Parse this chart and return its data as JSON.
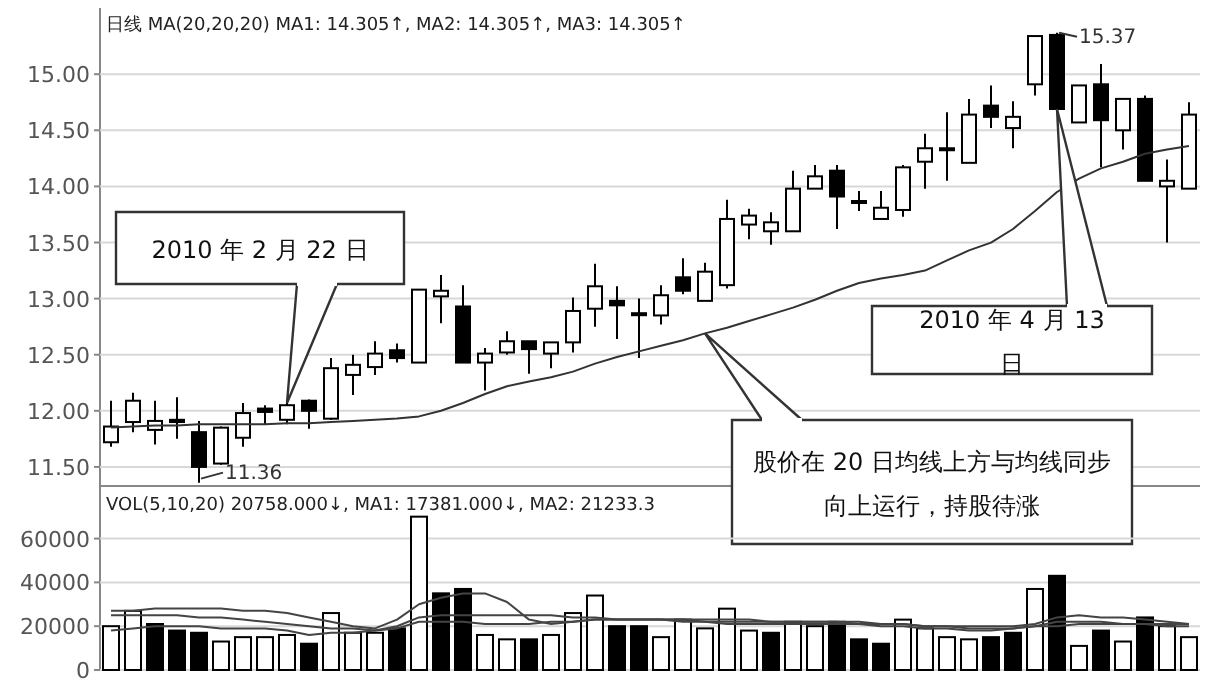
{
  "chart_data": [
    {
      "type": "candlestick",
      "title": "日线 MA(20,20,20) MA1: 14.305↑, MA2: 14.305↑, MA3: 14.305↑",
      "color": "#000000",
      "grid": "y",
      "categories": [
        null,
        null,
        null,
        null,
        null,
        null,
        null,
        null,
        null,
        null,
        null,
        null,
        null,
        null,
        null,
        null,
        null,
        null,
        null,
        null,
        null,
        null,
        null,
        null,
        null,
        null,
        null,
        null,
        null,
        null,
        null,
        null,
        null,
        null,
        null,
        null,
        null,
        null,
        null,
        null,
        null,
        null,
        null,
        null,
        null,
        null,
        null,
        null,
        null,
        null
      ],
      "ohlc": [
        [
          11.72,
          12.09,
          11.68,
          11.86
        ],
        [
          11.9,
          12.16,
          11.81,
          12.09
        ],
        [
          11.83,
          12.09,
          11.7,
          11.91
        ],
        [
          11.92,
          12.12,
          11.75,
          11.9
        ],
        [
          11.81,
          11.91,
          11.36,
          11.5
        ],
        [
          11.53,
          11.86,
          11.52,
          11.85
        ],
        [
          11.76,
          12.07,
          11.68,
          11.98
        ],
        [
          12.02,
          12.05,
          11.88,
          11.99
        ],
        [
          11.92,
          12.07,
          11.88,
          12.05
        ],
        [
          12.09,
          12.1,
          11.84,
          12.0
        ],
        [
          11.93,
          12.47,
          11.92,
          12.38
        ],
        [
          12.32,
          12.5,
          12.14,
          12.41
        ],
        [
          12.39,
          12.62,
          12.32,
          12.51
        ],
        [
          12.54,
          12.6,
          12.43,
          12.47
        ],
        [
          12.43,
          13.08,
          12.43,
          13.08
        ],
        [
          13.02,
          13.21,
          12.78,
          13.07
        ],
        [
          12.93,
          13.12,
          12.43,
          12.43
        ],
        [
          12.43,
          12.56,
          12.18,
          12.51
        ],
        [
          12.52,
          12.71,
          12.5,
          12.62
        ],
        [
          12.62,
          12.62,
          12.33,
          12.55
        ],
        [
          12.51,
          12.61,
          12.38,
          12.61
        ],
        [
          12.61,
          13.01,
          12.52,
          12.89
        ],
        [
          12.91,
          13.31,
          12.75,
          13.11
        ],
        [
          12.98,
          13.11,
          12.64,
          12.94
        ],
        [
          12.87,
          13.0,
          12.47,
          12.86
        ],
        [
          12.85,
          13.12,
          12.77,
          13.03
        ],
        [
          13.19,
          13.36,
          13.04,
          13.07
        ],
        [
          12.98,
          13.32,
          12.98,
          13.24
        ],
        [
          13.12,
          13.88,
          13.09,
          13.71
        ],
        [
          13.66,
          13.8,
          13.53,
          13.74
        ],
        [
          13.6,
          13.77,
          13.48,
          13.68
        ],
        [
          13.6,
          14.14,
          13.6,
          13.98
        ],
        [
          13.98,
          14.19,
          13.98,
          14.09
        ],
        [
          14.14,
          14.19,
          13.62,
          13.91
        ],
        [
          13.87,
          13.96,
          13.78,
          13.86
        ],
        [
          13.71,
          13.96,
          13.71,
          13.81
        ],
        [
          13.79,
          14.19,
          13.73,
          14.17
        ],
        [
          14.22,
          14.47,
          13.98,
          14.34
        ],
        [
          14.33,
          14.66,
          14.05,
          14.34
        ],
        [
          14.21,
          14.78,
          14.21,
          14.64
        ],
        [
          14.72,
          14.9,
          14.52,
          14.62
        ],
        [
          14.52,
          14.76,
          14.34,
          14.62
        ],
        [
          14.91,
          15.34,
          14.81,
          15.34
        ],
        [
          15.35,
          15.37,
          14.69,
          14.69
        ],
        [
          14.57,
          14.9,
          14.57,
          14.9
        ],
        [
          14.91,
          15.09,
          14.17,
          14.59
        ],
        [
          14.5,
          14.78,
          14.33,
          14.78
        ],
        [
          14.78,
          14.81,
          14.05,
          14.05
        ],
        [
          14.0,
          14.24,
          13.5,
          14.05
        ],
        [
          13.98,
          14.75,
          13.98,
          14.64
        ]
      ],
      "series": [
        {
          "type": "line",
          "color": "#333333",
          "values": [
            11.85,
            11.86,
            11.87,
            11.87,
            11.88,
            11.88,
            11.88,
            11.88,
            11.89,
            11.89,
            11.9,
            11.91,
            11.92,
            11.93,
            11.95,
            12.0,
            12.07,
            12.15,
            12.22,
            12.26,
            12.3,
            12.35,
            12.42,
            12.48,
            12.53,
            12.58,
            12.63,
            12.69,
            12.74,
            12.8,
            12.86,
            12.92,
            12.99,
            13.07,
            13.14,
            13.18,
            13.21,
            13.25,
            13.34,
            13.43,
            13.5,
            13.62,
            13.78,
            13.95,
            14.07,
            14.16,
            14.22,
            14.29,
            14.33,
            14.36
          ]
        }
      ],
      "ylim": [
        11.33,
        15.59
      ],
      "yticks": [
        {
          "value": 11.5,
          "label": "11.50"
        },
        {
          "value": 12,
          "label": "12.00"
        },
        {
          "value": 12.5,
          "label": "12.50"
        },
        {
          "value": 13,
          "label": "13.00"
        },
        {
          "value": 13.5,
          "label": "13.50"
        },
        {
          "value": 14,
          "label": "14.00"
        },
        {
          "value": 14.5,
          "label": "14.50"
        },
        {
          "value": 15,
          "label": "15.00"
        }
      ],
      "annotations": [
        "15.37",
        "11.36",
        "2010 年 2 月 22 日",
        "2010 年 4 月 13 日",
        "股价在 20 日均线上方与均线同步向上运行，持股待涨"
      ]
    },
    {
      "type": "bar",
      "title": "VOL(5,10,20) 20758.000↓, MA1: 17381.000↓, MA2: 21233.3",
      "grid": "y",
      "categories": [
        null,
        null,
        null,
        null,
        null,
        null,
        null,
        null,
        null,
        null,
        null,
        null,
        null,
        null,
        null,
        null,
        null,
        null,
        null,
        null,
        null,
        null,
        null,
        null,
        null,
        null,
        null,
        null,
        null,
        null,
        null,
        null,
        null,
        null,
        null,
        null,
        null,
        null,
        null,
        null,
        null,
        null,
        null,
        null,
        null,
        null,
        null,
        null,
        null,
        null
      ],
      "series": [
        {
          "type": "bar",
          "values": [
            20000,
            27000,
            21000,
            18000,
            17000,
            13000,
            15000,
            15000,
            16000,
            12000,
            26000,
            17000,
            17000,
            19000,
            70000,
            35000,
            37000,
            16000,
            14000,
            14000,
            16000,
            26000,
            34000,
            20000,
            20000,
            15000,
            23000,
            19000,
            28000,
            18000,
            17000,
            22000,
            20000,
            22000,
            14000,
            12000,
            23000,
            19000,
            15000,
            14000,
            15000,
            17000,
            37000,
            43000,
            11000,
            18000,
            13000,
            24000,
            20000,
            15000
          ],
          "colors": [
            "#ffffff",
            "#ffffff",
            "#000000",
            "#000000",
            "#000000",
            "#ffffff",
            "#ffffff",
            "#ffffff",
            "#ffffff",
            "#000000",
            "#ffffff",
            "#ffffff",
            "#ffffff",
            "#000000",
            "#ffffff",
            "#000000",
            "#000000",
            "#ffffff",
            "#ffffff",
            "#000000",
            "#ffffff",
            "#ffffff",
            "#ffffff",
            "#000000",
            "#000000",
            "#ffffff",
            "#ffffff",
            "#ffffff",
            "#ffffff",
            "#ffffff",
            "#000000",
            "#ffffff",
            "#ffffff",
            "#000000",
            "#000000",
            "#000000",
            "#ffffff",
            "#ffffff",
            "#ffffff",
            "#ffffff",
            "#000000",
            "#000000",
            "#ffffff",
            "#000000",
            "#ffffff",
            "#000000",
            "#ffffff",
            "#000000",
            "#ffffff",
            "#ffffff"
          ]
        },
        {
          "type": "line",
          "color": "#444444",
          "values": [
            27000,
            27000,
            28000,
            28000,
            28000,
            28000,
            27000,
            27000,
            26000,
            24000,
            22000,
            20000,
            19000,
            23000,
            30000,
            33000,
            35000,
            35000,
            31000,
            23000,
            21000,
            22000,
            23000,
            23000,
            23000,
            23000,
            23000,
            23000,
            23000,
            23000,
            22000,
            22000,
            22000,
            22000,
            21000,
            21000,
            21000,
            20000,
            20000,
            20000,
            20000,
            20000,
            21000,
            24000,
            25000,
            24000,
            24000,
            23000,
            22000,
            21000
          ]
        },
        {
          "type": "line",
          "color": "#444444",
          "values": [
            25000,
            25000,
            25000,
            25000,
            24000,
            24000,
            23000,
            22000,
            21000,
            20000,
            19000,
            19000,
            18000,
            20000,
            24000,
            25000,
            25000,
            25000,
            25000,
            25000,
            25000,
            24000,
            24000,
            23000,
            23000,
            23000,
            23000,
            22000,
            22000,
            22000,
            22000,
            22000,
            22000,
            22000,
            22000,
            21000,
            21000,
            20000,
            20000,
            19000,
            19000,
            19000,
            20000,
            20000,
            21000,
            21000,
            21000,
            21000,
            21000,
            21000
          ]
        },
        {
          "type": "line",
          "color": "#444444",
          "values": [
            18000,
            19000,
            20000,
            20000,
            20000,
            19000,
            19000,
            19000,
            18000,
            16000,
            17000,
            17000,
            18000,
            19000,
            22000,
            22000,
            22000,
            21000,
            21000,
            21000,
            22000,
            22000,
            23000,
            23000,
            23000,
            23000,
            22000,
            22000,
            21000,
            21000,
            21000,
            21000,
            21000,
            21000,
            21000,
            20000,
            20000,
            19000,
            19000,
            18000,
            18000,
            19000,
            20000,
            22000,
            22000,
            22000,
            21000,
            21000,
            20000,
            20000
          ]
        }
      ],
      "ylim": [
        0,
        84000
      ],
      "yticks": [
        0,
        20000,
        40000,
        60000
      ]
    }
  ]
}
